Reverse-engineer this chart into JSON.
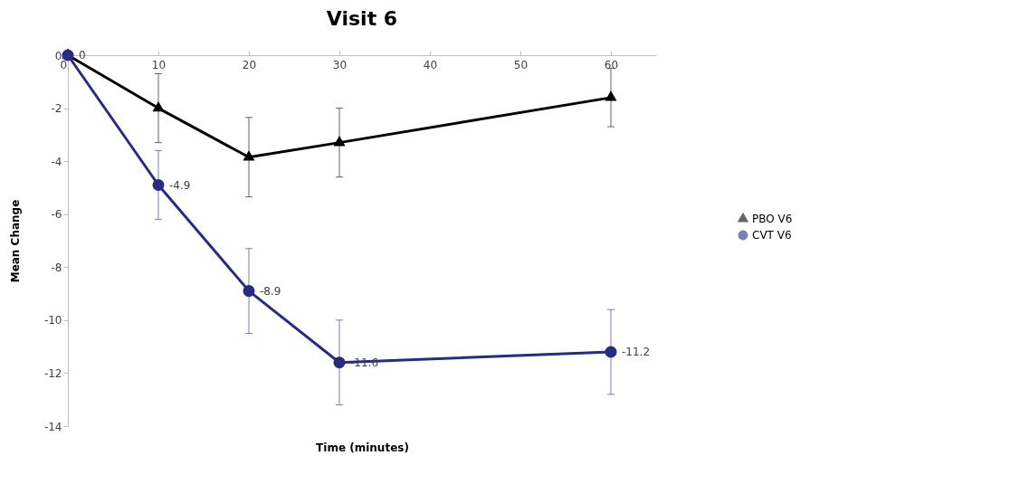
{
  "chart_data": {
    "type": "line",
    "title": "Visit 6",
    "xlabel": "Time (minutes)",
    "ylabel": "Mean Change",
    "x": [
      0,
      10,
      20,
      30,
      60
    ],
    "series": [
      {
        "name": "PBO V6",
        "color": "#000000",
        "marker": "triangle",
        "values": [
          0,
          -2.0,
          -3.85,
          -3.3,
          -1.6
        ],
        "errors": [
          null,
          1.3,
          1.5,
          1.3,
          1.1
        ]
      },
      {
        "name": "CVT V6",
        "color": "#262b84",
        "marker": "circle",
        "values": [
          0,
          -4.9,
          -8.9,
          -11.6,
          -11.2
        ],
        "errors": [
          null,
          1.3,
          1.6,
          1.6,
          1.6
        ],
        "value_labels": [
          "0",
          "-4.9",
          "-8.9",
          "-11.6",
          "-11.2"
        ]
      }
    ],
    "xlim": [
      0,
      65
    ],
    "xticks": [
      0,
      10,
      20,
      30,
      40,
      50,
      60
    ],
    "ylim": [
      -14,
      0
    ],
    "yticks": [
      -14,
      -12,
      -10,
      -8,
      -6,
      -4,
      -2,
      0
    ],
    "grid": false,
    "legend": "right"
  }
}
